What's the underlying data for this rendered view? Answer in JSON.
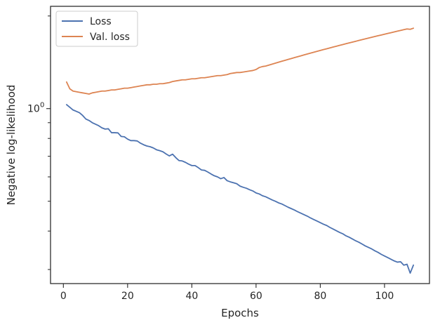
{
  "chart_data": {
    "type": "line",
    "xlabel": "Epochs",
    "ylabel": "Negative log-likelihood",
    "xlim": [
      -4,
      114
    ],
    "ylim": [
      0.27,
      2.15
    ],
    "yscale": "log",
    "xticks": [
      0,
      20,
      40,
      60,
      80,
      100
    ],
    "xtick_labels": [
      "0",
      "20",
      "40",
      "60",
      "80",
      "100"
    ],
    "yticks_major": [
      1.0
    ],
    "ytick_major_labels": [
      "10"
    ],
    "ytick_major_exponent": "0",
    "yticks_minor": [
      0.3,
      0.4,
      0.5,
      0.6,
      0.7,
      0.8,
      0.9,
      2.0
    ],
    "grid": false,
    "legend_position": "upper left",
    "x": [
      1,
      2,
      3,
      4,
      5,
      6,
      7,
      8,
      9,
      10,
      11,
      12,
      13,
      14,
      15,
      16,
      17,
      18,
      19,
      20,
      21,
      22,
      23,
      24,
      25,
      26,
      27,
      28,
      29,
      30,
      31,
      32,
      33,
      34,
      35,
      36,
      37,
      38,
      39,
      40,
      41,
      42,
      43,
      44,
      45,
      46,
      47,
      48,
      49,
      50,
      51,
      52,
      53,
      54,
      55,
      56,
      57,
      58,
      59,
      60,
      61,
      62,
      63,
      64,
      65,
      66,
      67,
      68,
      69,
      70,
      71,
      72,
      73,
      74,
      75,
      76,
      77,
      78,
      79,
      80,
      81,
      82,
      83,
      84,
      85,
      86,
      87,
      88,
      89,
      90,
      91,
      92,
      93,
      94,
      95,
      96,
      97,
      98,
      99,
      100,
      101,
      102,
      103,
      104,
      105,
      106,
      107,
      108,
      109
    ],
    "series": [
      {
        "name": "Loss",
        "color": "#4c72b0",
        "values": [
          1.03,
          1.01,
          0.99,
          0.98,
          0.97,
          0.95,
          0.925,
          0.915,
          0.9,
          0.89,
          0.88,
          0.866,
          0.858,
          0.86,
          0.835,
          0.835,
          0.834,
          0.812,
          0.81,
          0.796,
          0.787,
          0.787,
          0.785,
          0.772,
          0.763,
          0.756,
          0.752,
          0.745,
          0.735,
          0.73,
          0.724,
          0.712,
          0.702,
          0.711,
          0.693,
          0.678,
          0.676,
          0.669,
          0.66,
          0.653,
          0.653,
          0.643,
          0.632,
          0.63,
          0.622,
          0.613,
          0.605,
          0.6,
          0.592,
          0.597,
          0.583,
          0.578,
          0.574,
          0.57,
          0.56,
          0.555,
          0.551,
          0.545,
          0.54,
          0.532,
          0.528,
          0.521,
          0.517,
          0.511,
          0.505,
          0.5,
          0.494,
          0.49,
          0.484,
          0.478,
          0.473,
          0.468,
          0.462,
          0.457,
          0.452,
          0.447,
          0.441,
          0.436,
          0.431,
          0.426,
          0.421,
          0.417,
          0.411,
          0.406,
          0.401,
          0.396,
          0.392,
          0.386,
          0.382,
          0.377,
          0.372,
          0.368,
          0.363,
          0.358,
          0.354,
          0.35,
          0.345,
          0.341,
          0.336,
          0.332,
          0.328,
          0.324,
          0.32,
          0.317,
          0.318,
          0.31,
          0.312,
          0.292,
          0.31
        ]
      },
      {
        "name": "Val. loss",
        "color": "#dd8452",
        "values": [
          1.22,
          1.16,
          1.14,
          1.135,
          1.13,
          1.125,
          1.12,
          1.115,
          1.125,
          1.13,
          1.135,
          1.14,
          1.14,
          1.145,
          1.15,
          1.15,
          1.155,
          1.16,
          1.165,
          1.165,
          1.17,
          1.175,
          1.18,
          1.185,
          1.19,
          1.195,
          1.195,
          1.2,
          1.2,
          1.205,
          1.205,
          1.21,
          1.215,
          1.225,
          1.23,
          1.235,
          1.24,
          1.24,
          1.245,
          1.25,
          1.25,
          1.255,
          1.26,
          1.26,
          1.265,
          1.27,
          1.275,
          1.28,
          1.28,
          1.285,
          1.29,
          1.3,
          1.305,
          1.31,
          1.31,
          1.315,
          1.32,
          1.325,
          1.33,
          1.34,
          1.36,
          1.37,
          1.375,
          1.385,
          1.395,
          1.405,
          1.415,
          1.425,
          1.435,
          1.445,
          1.455,
          1.465,
          1.475,
          1.485,
          1.495,
          1.505,
          1.515,
          1.525,
          1.535,
          1.545,
          1.555,
          1.565,
          1.575,
          1.585,
          1.595,
          1.605,
          1.615,
          1.625,
          1.635,
          1.645,
          1.655,
          1.665,
          1.675,
          1.685,
          1.695,
          1.705,
          1.715,
          1.725,
          1.735,
          1.745,
          1.755,
          1.765,
          1.775,
          1.785,
          1.795,
          1.805,
          1.815,
          1.81,
          1.825
        ]
      }
    ]
  }
}
